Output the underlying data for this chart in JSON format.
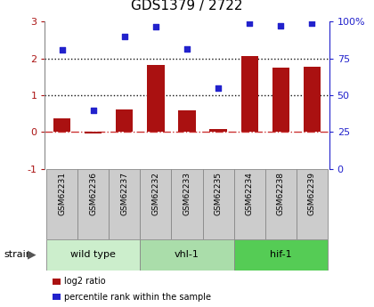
{
  "title": "GDS1379 / 2722",
  "samples": [
    "GSM62231",
    "GSM62236",
    "GSM62237",
    "GSM62232",
    "GSM62233",
    "GSM62235",
    "GSM62234",
    "GSM62238",
    "GSM62239"
  ],
  "log2_ratio": [
    0.38,
    -0.05,
    0.62,
    1.82,
    0.58,
    0.07,
    2.05,
    1.75,
    1.78
  ],
  "pct_rank": [
    2.22,
    0.58,
    2.6,
    2.85,
    2.25,
    1.18,
    2.95,
    2.88,
    2.95
  ],
  "bar_color": "#aa1111",
  "scatter_color": "#2222cc",
  "ylim_left": [
    -1,
    3
  ],
  "ylim_right": [
    0,
    100
  ],
  "yticks_left": [
    -1,
    0,
    1,
    2,
    3
  ],
  "yticks_right": [
    0,
    25,
    50,
    75,
    100
  ],
  "ytick_labels_right": [
    "0",
    "25",
    "50",
    "75",
    "100%"
  ],
  "groups": [
    {
      "label": "wild type",
      "start": 0,
      "end": 3,
      "color": "#cceecc"
    },
    {
      "label": "vhl-1",
      "start": 3,
      "end": 6,
      "color": "#aaddaa"
    },
    {
      "label": "hif-1",
      "start": 6,
      "end": 9,
      "color": "#55cc55"
    }
  ],
  "strain_label": "strain",
  "legend_items": [
    {
      "label": "log2 ratio",
      "color": "#aa1111"
    },
    {
      "label": "percentile rank within the sample",
      "color": "#2222cc"
    }
  ],
  "bg_color": "#ffffff",
  "tick_box_color": "#cccccc",
  "title_fontsize": 11,
  "axis_fontsize": 8,
  "sample_fontsize": 6.5,
  "group_fontsize": 8
}
